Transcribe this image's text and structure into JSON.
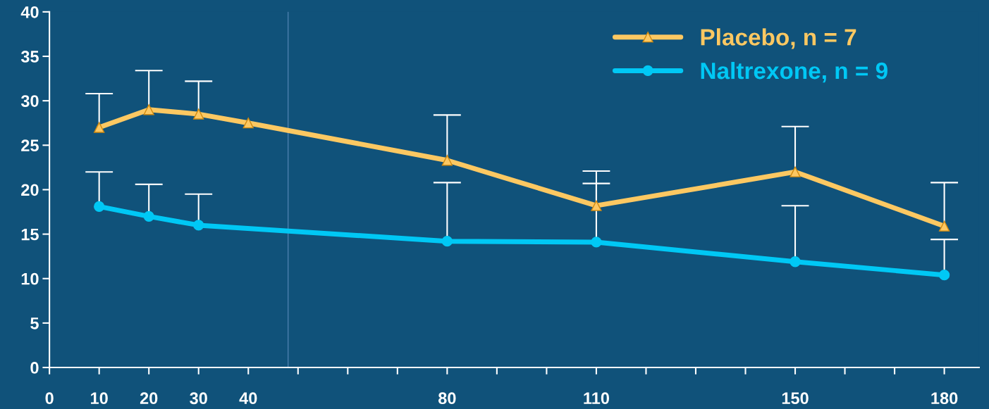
{
  "chart_data": {
    "type": "line",
    "xlim": [
      0,
      187
    ],
    "ylim": [
      0,
      40
    ],
    "xticks": [
      0,
      10,
      20,
      30,
      40,
      {
        "value": 50,
        "label": null
      },
      {
        "value": 60,
        "label": null
      },
      {
        "value": 70,
        "label": null
      },
      80,
      {
        "value": 90,
        "label": null
      },
      {
        "value": 100,
        "label": null
      },
      110,
      {
        "value": 120,
        "label": null
      },
      {
        "value": 130,
        "label": null
      },
      {
        "value": 140,
        "label": null
      },
      150,
      {
        "value": 160,
        "label": null
      },
      {
        "value": 170,
        "label": null
      },
      180
    ],
    "yticks": [
      0,
      5,
      10,
      15,
      20,
      25,
      30,
      35,
      40
    ],
    "series": [
      {
        "name": "Placebo, n = 7",
        "color": "#fcc862",
        "marker": "triangle",
        "x": [
          10,
          20,
          30,
          40,
          80,
          110,
          150,
          180
        ],
        "values": [
          27.0,
          29.0,
          28.5,
          27.5,
          23.3,
          18.2,
          22.0,
          15.9
        ],
        "errors": [
          [
            27.0,
            30.8
          ],
          [
            29.0,
            33.4
          ],
          [
            28.5,
            32.2
          ],
          null,
          [
            23.3,
            28.4
          ],
          [
            18.2,
            22.1
          ],
          [
            22.0,
            27.1
          ],
          [
            15.9,
            20.8
          ]
        ]
      },
      {
        "name": "Naltrexone, n = 9",
        "color": "#00c8f5",
        "marker": "circle",
        "x": [
          10,
          20,
          30,
          80,
          110,
          150,
          180
        ],
        "values": [
          18.1,
          17.0,
          16.0,
          14.2,
          14.1,
          11.9,
          10.4
        ],
        "errors": [
          [
            18.1,
            22.0
          ],
          [
            17.0,
            20.6
          ],
          [
            16.0,
            19.5
          ],
          [
            14.2,
            20.8
          ],
          [
            14.1,
            20.7
          ],
          [
            11.9,
            18.2
          ],
          [
            10.4,
            14.4
          ]
        ]
      }
    ],
    "ref_lines": [
      {
        "axis": "x",
        "value": 48,
        "color": "#4a7fae"
      }
    ],
    "grid": false,
    "legend": "top right",
    "line_style": "solid"
  }
}
